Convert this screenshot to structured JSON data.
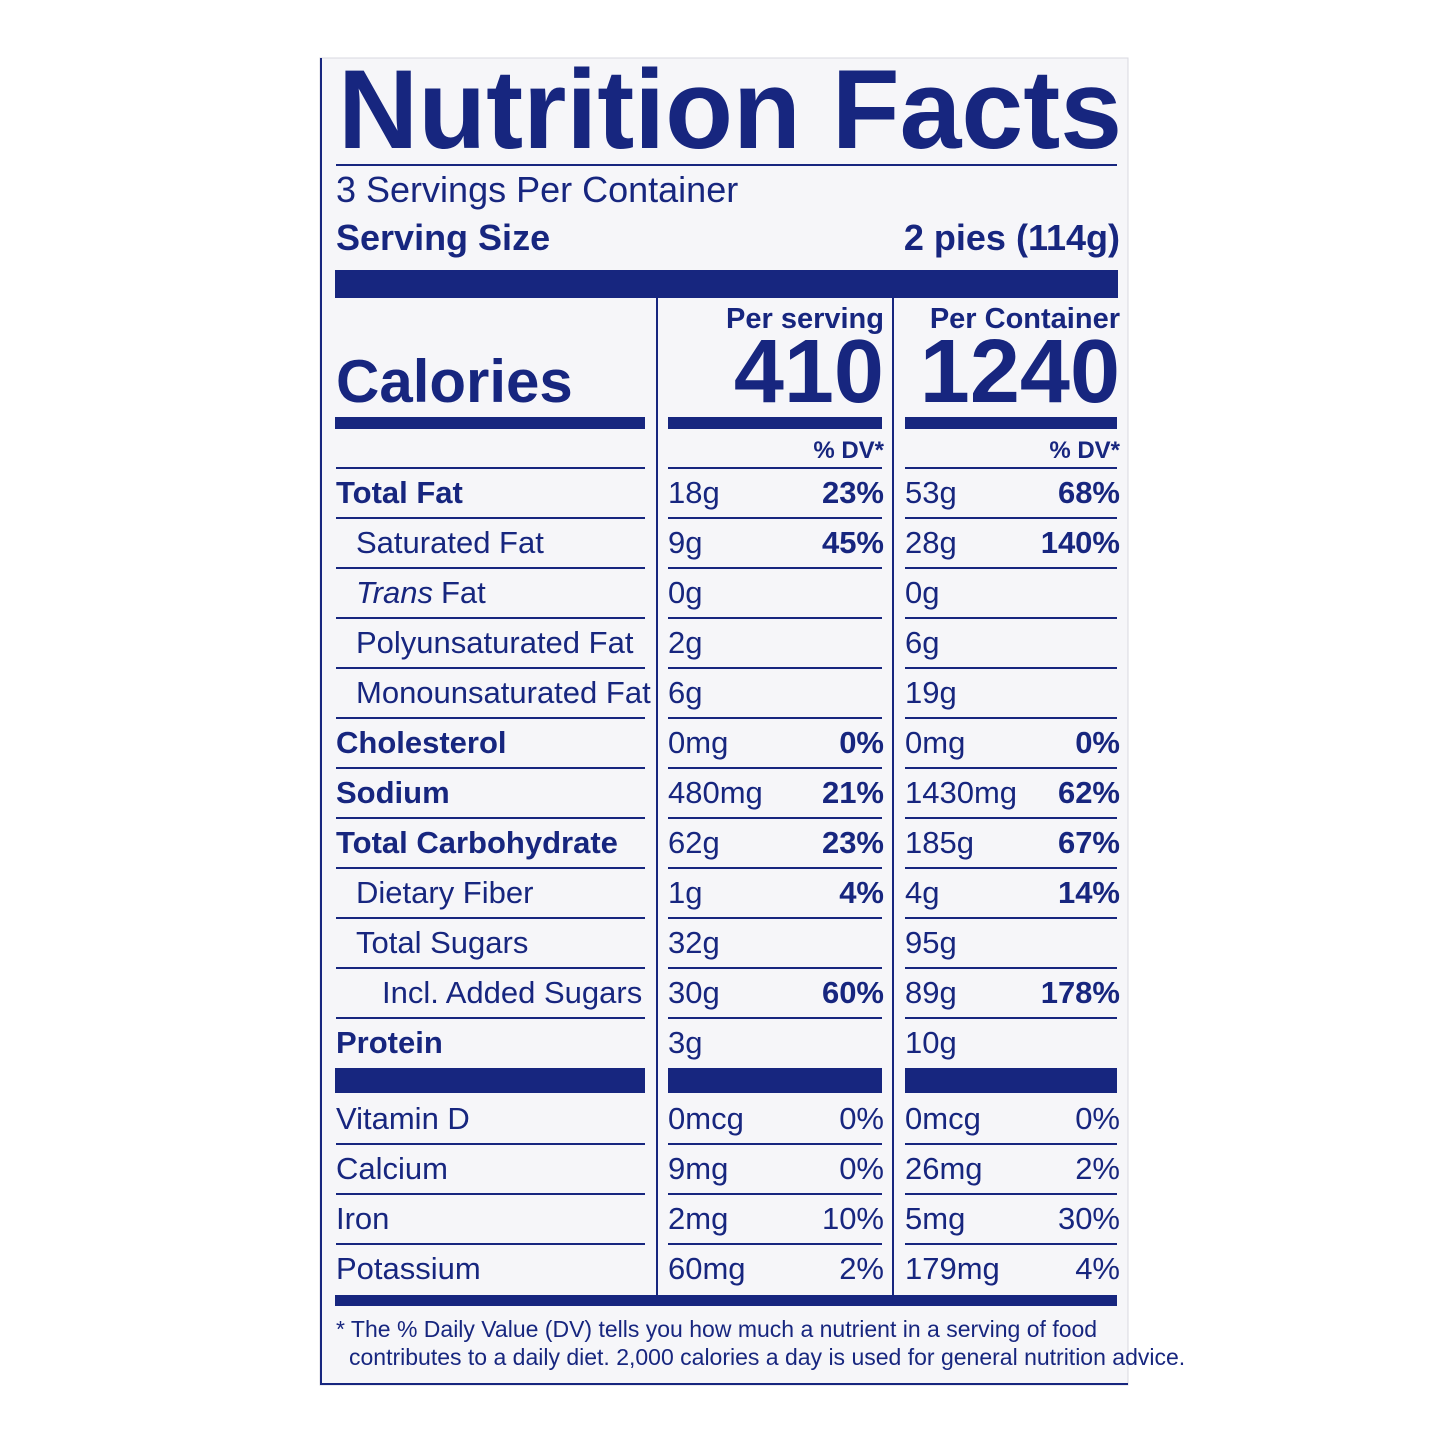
{
  "title": "Nutrition Facts",
  "servings": "3 Servings Per Container",
  "serving_size": {
    "label": "Serving Size",
    "value": "2 pies (114g)"
  },
  "calories": {
    "label": "Calories",
    "columns": [
      {
        "header": "Per serving",
        "value": 410
      },
      {
        "header": "Per Container",
        "value": 1240
      }
    ]
  },
  "dv_headers": [
    "% DV*",
    "% DV*"
  ],
  "nutrients": [
    {
      "name": "Total Fat",
      "level": 0,
      "columns": [
        {
          "amount": "18g",
          "dv": "23%"
        },
        {
          "amount": "53g",
          "dv": "68%"
        }
      ]
    },
    {
      "name": "Saturated Fat",
      "level": 1,
      "columns": [
        {
          "amount": "9g",
          "dv": "45%"
        },
        {
          "amount": "28g",
          "dv": "140%"
        }
      ]
    },
    {
      "name_italic": "Trans",
      "name": "Fat",
      "level": 1,
      "columns": [
        {
          "amount": "0g"
        },
        {
          "amount": "0g"
        }
      ]
    },
    {
      "name": "Polyunsaturated Fat",
      "level": 1,
      "columns": [
        {
          "amount": "2g"
        },
        {
          "amount": "6g"
        }
      ]
    },
    {
      "name": "Monounsaturated Fat",
      "level": 1,
      "columns": [
        {
          "amount": "6g"
        },
        {
          "amount": "19g"
        }
      ]
    },
    {
      "name": "Cholesterol",
      "level": 0,
      "columns": [
        {
          "amount": "0mg",
          "dv": "0%"
        },
        {
          "amount": "0mg",
          "dv": "0%"
        }
      ]
    },
    {
      "name": "Sodium",
      "level": 0,
      "columns": [
        {
          "amount": "480mg",
          "dv": "21%"
        },
        {
          "amount": "1430mg",
          "dv": "62%"
        }
      ]
    },
    {
      "name": "Total Carbohydrate",
      "level": 0,
      "columns": [
        {
          "amount": "62g",
          "dv": "23%"
        },
        {
          "amount": "185g",
          "dv": "67%"
        }
      ]
    },
    {
      "name": "Dietary Fiber",
      "level": 1,
      "columns": [
        {
          "amount": "1g",
          "dv": "4%"
        },
        {
          "amount": "4g",
          "dv": "14%"
        }
      ]
    },
    {
      "name": "Total Sugars",
      "level": 1,
      "columns": [
        {
          "amount": "32g"
        },
        {
          "amount": "95g"
        }
      ]
    },
    {
      "name": "Incl. Added Sugars",
      "level": 2,
      "columns": [
        {
          "amount": "30g",
          "dv": "60%"
        },
        {
          "amount": "89g",
          "dv": "178%"
        }
      ]
    },
    {
      "name": "Protein",
      "level": 0,
      "columns": [
        {
          "amount": "3g"
        },
        {
          "amount": "10g"
        }
      ]
    }
  ],
  "vitamins": [
    {
      "name": "Vitamin D",
      "columns": [
        {
          "amount": "0mcg",
          "dv": "0%"
        },
        {
          "amount": "0mcg",
          "dv": "0%"
        }
      ]
    },
    {
      "name": "Calcium",
      "columns": [
        {
          "amount": "9mg",
          "dv": "0%"
        },
        {
          "amount": "26mg",
          "dv": "2%"
        }
      ]
    },
    {
      "name": "Iron",
      "columns": [
        {
          "amount": "2mg",
          "dv": "10%"
        },
        {
          "amount": "5mg",
          "dv": "30%"
        }
      ]
    },
    {
      "name": "Potassium",
      "columns": [
        {
          "amount": "60mg",
          "dv": "2%"
        },
        {
          "amount": "179mg",
          "dv": "4%"
        }
      ]
    }
  ],
  "footnote": [
    "* The % Daily Value (DV) tells you how much a nutrient in a serving of food",
    "contributes to a daily diet. 2,000 calories a day is used for general nutrition advice."
  ]
}
